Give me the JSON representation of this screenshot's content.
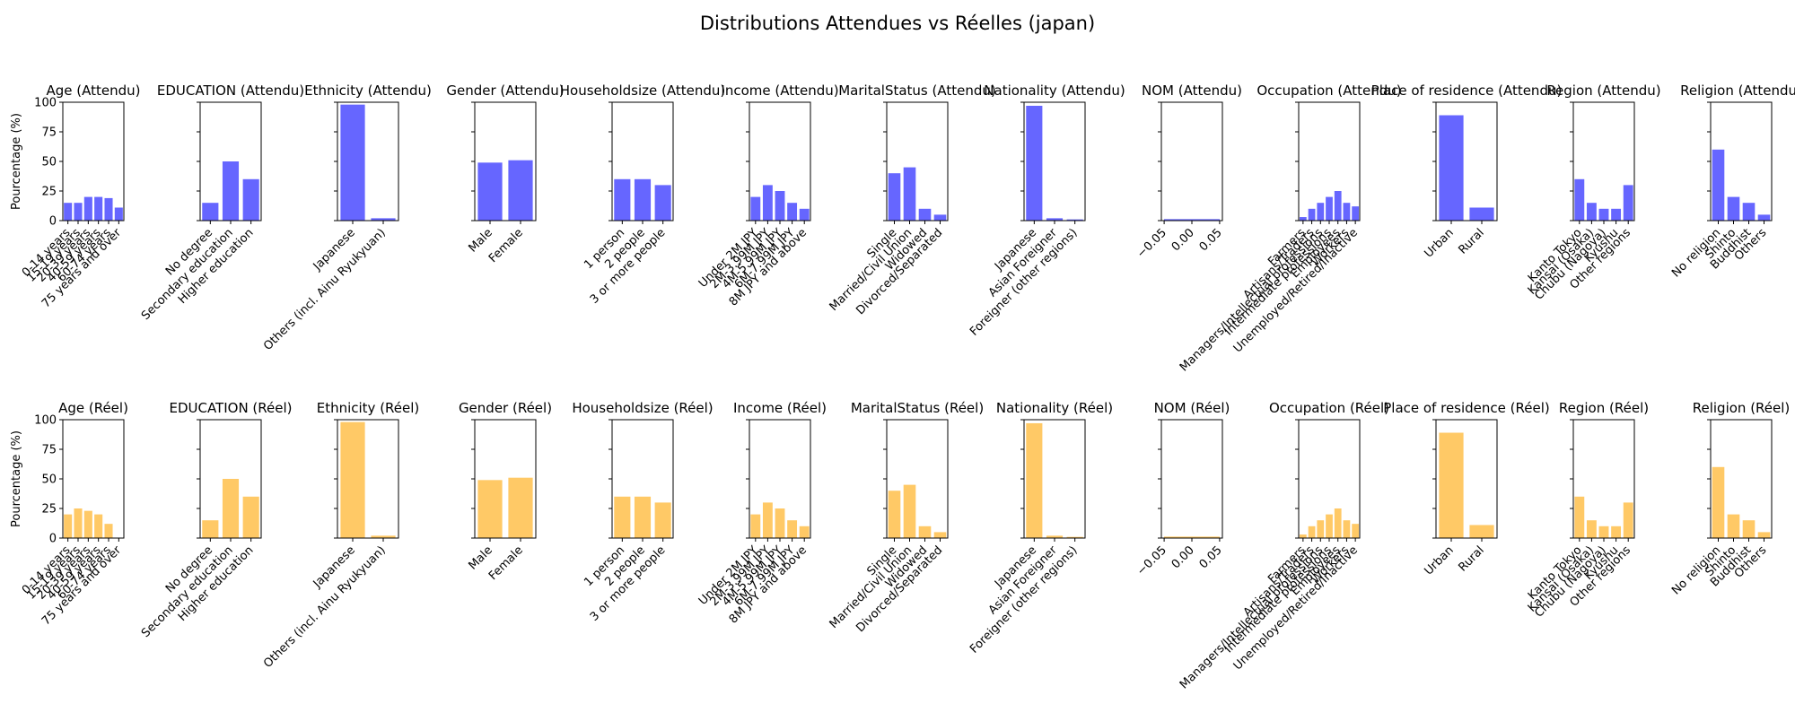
{
  "figure": {
    "title": "Distributions Attendues vs Réelles (japan)"
  },
  "colors": {
    "expected": "#6666ff",
    "actual": "#ffc966",
    "axis": "#000000"
  },
  "chart_data": {
    "type": "bar",
    "layout": "grid 2 rows x 13 columns",
    "ylabel": "Pourcentage (%)",
    "ylim": [
      0,
      100
    ],
    "yticks": [
      0,
      25,
      50,
      75,
      100
    ],
    "row_labels": {
      "expected": "Attendu",
      "actual": "Réel"
    },
    "panels": [
      {
        "name": "Age",
        "categories": [
          "0-14 years",
          "15-19 years",
          "20-39 years",
          "40-59 years",
          "60-74 years",
          "75 years and over"
        ],
        "expected": [
          15,
          15,
          20,
          20,
          19,
          11
        ],
        "actual": [
          20,
          25,
          23,
          20,
          12,
          0
        ]
      },
      {
        "name": "EDUCATION",
        "categories": [
          "No degree",
          "Secondary education",
          "Higher education"
        ],
        "expected": [
          15,
          50,
          35
        ],
        "actual": [
          15,
          50,
          35
        ]
      },
      {
        "name": "Ethnicity",
        "categories": [
          "Japanese",
          "Others (incl. Ainu Ryukyuan)"
        ],
        "expected": [
          98,
          2
        ],
        "actual": [
          98,
          2
        ]
      },
      {
        "name": "Gender",
        "categories": [
          "Male",
          "Female"
        ],
        "expected": [
          49,
          51
        ],
        "actual": [
          49,
          51
        ]
      },
      {
        "name": "Householdsize",
        "categories": [
          "1 person",
          "2 people",
          "3 or more people"
        ],
        "expected": [
          35,
          35,
          30
        ],
        "actual": [
          35,
          35,
          30
        ]
      },
      {
        "name": "Income",
        "categories": [
          "Under 2M JPY",
          "2M-3.99M JPY",
          "4M-5.99M JPY",
          "6M-7.99M JPY",
          "8M JPY and above"
        ],
        "expected": [
          20,
          30,
          25,
          15,
          10
        ],
        "actual": [
          20,
          30,
          25,
          15,
          10
        ]
      },
      {
        "name": "MaritalStatus",
        "categories": [
          "Single",
          "Married/Civil Union",
          "Widowed",
          "Divorced/Separated"
        ],
        "expected": [
          40,
          45,
          10,
          5
        ],
        "actual": [
          40,
          45,
          10,
          5
        ]
      },
      {
        "name": "Nationality",
        "categories": [
          "Japanese",
          "Asian Foreigner",
          "Foreigner (other regions)"
        ],
        "expected": [
          97,
          2,
          1
        ],
        "actual": [
          97,
          2,
          1
        ]
      },
      {
        "name": "NOM",
        "categories": [],
        "expected": [],
        "actual": [],
        "xticks": [
          "−0.05",
          "0.00",
          "0.05"
        ]
      },
      {
        "name": "Occupation",
        "categories": [
          "Farmers",
          "Artisans/Traders",
          "Managers/Intellectual professions",
          "Intermediate professions",
          "Employees",
          "Workers",
          "Unemployed/Retired/Inactive"
        ],
        "expected": [
          3,
          10,
          15,
          20,
          25,
          15,
          12
        ],
        "actual": [
          3,
          10,
          15,
          20,
          25,
          15,
          12
        ]
      },
      {
        "name": "Place of residence",
        "categories": [
          "Urban",
          "Rural"
        ],
        "expected": [
          89,
          11
        ],
        "actual": [
          89,
          11
        ]
      },
      {
        "name": "Region",
        "categories": [
          "Kanto Tokyo",
          "Kansai (Osaka)",
          "Chubu (Nagoya)",
          "Kyushu",
          "Other regions"
        ],
        "expected": [
          35,
          15,
          10,
          10,
          30
        ],
        "actual": [
          35,
          15,
          10,
          10,
          30
        ]
      },
      {
        "name": "Religion",
        "categories": [
          "No religion",
          "Shinto",
          "Buddhist",
          "Others"
        ],
        "expected": [
          60,
          20,
          15,
          5
        ],
        "actual": [
          60,
          20,
          15,
          5
        ]
      }
    ]
  }
}
